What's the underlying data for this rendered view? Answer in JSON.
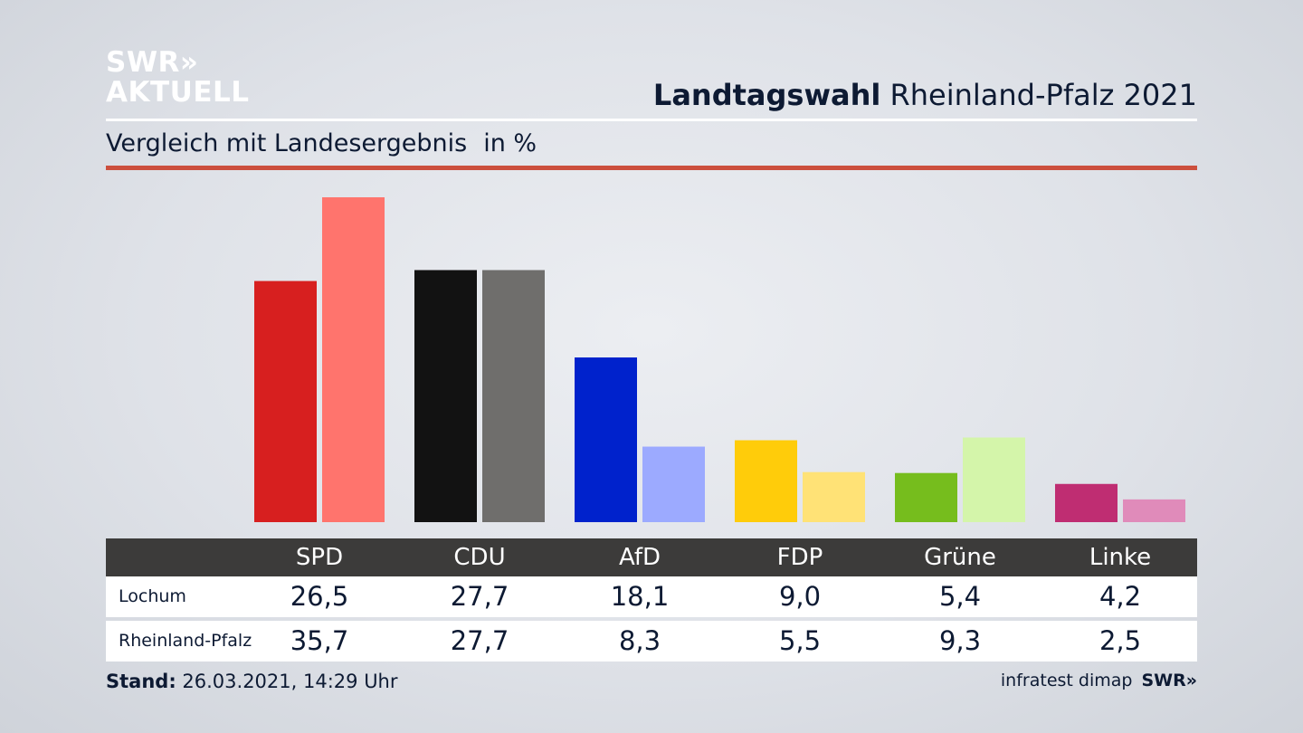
{
  "logo": {
    "line1": "SWR»",
    "line2": "AKTUELL"
  },
  "header": {
    "title_bold": "Landtagswahl",
    "title_rest": "Rheinland-Pfalz 2021"
  },
  "subtitle": {
    "text": "Vergleich mit Landesergebnis",
    "unit": "in %"
  },
  "colors": {
    "accent_rule": "#cc4f3d",
    "table_header": "#3c3b3a"
  },
  "chart_data": {
    "type": "bar",
    "categories": [
      "SPD",
      "CDU",
      "AfD",
      "FDP",
      "Grüne",
      "Linke"
    ],
    "series": [
      {
        "name": "Lochum",
        "values": [
          26.5,
          27.7,
          18.1,
          9.0,
          5.4,
          4.2
        ],
        "value_labels": [
          "26,5",
          "27,7",
          "18,1",
          "9,0",
          "5,4",
          "4,2"
        ],
        "colors": [
          "#d71f1f",
          "#121212",
          "#0022cc",
          "#ffcc0a",
          "#76bd1d",
          "#bf2d72"
        ]
      },
      {
        "name": "Rheinland-Pfalz",
        "values": [
          35.7,
          27.7,
          8.3,
          5.5,
          9.3,
          2.5
        ],
        "value_labels": [
          "35,7",
          "27,7",
          "8,3",
          "5,5",
          "9,3",
          "2,5"
        ],
        "colors": [
          "#ff746d",
          "#6f6e6c",
          "#9caaff",
          "#ffe276",
          "#d4f5aa",
          "#e08bba"
        ]
      }
    ],
    "ylim": [
      0,
      36
    ]
  },
  "footer": {
    "stand_label": "Stand:",
    "stand_value": "26.03.2021, 14:29 Uhr",
    "source": "infratest dimap",
    "source_logo": "SWR»"
  }
}
